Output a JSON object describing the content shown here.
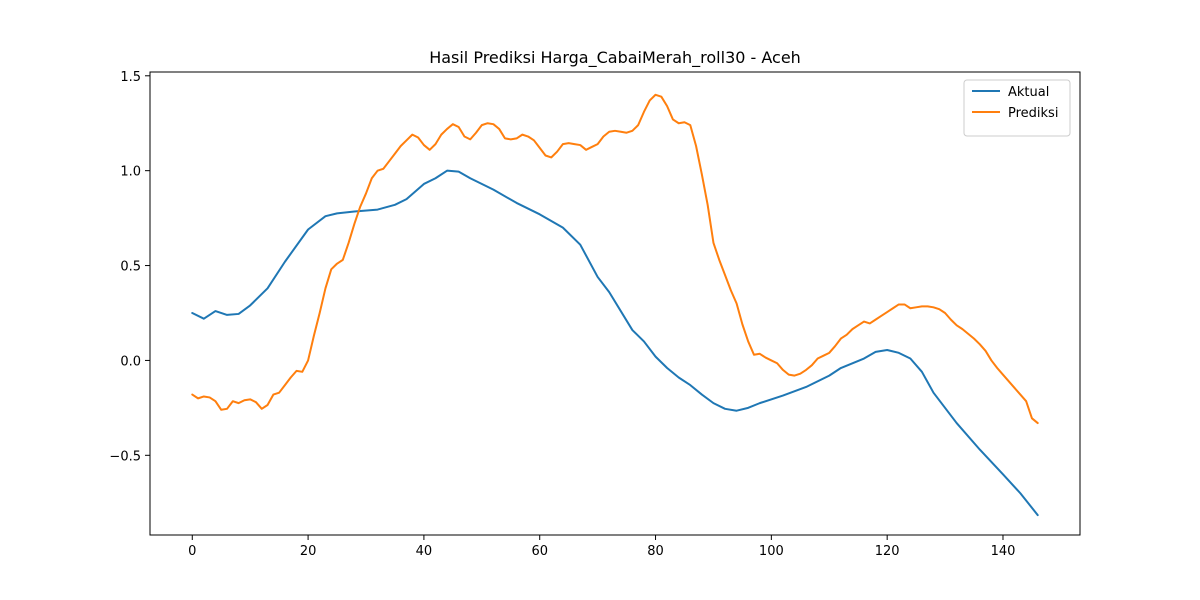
{
  "chart_data": {
    "type": "line",
    "title": "Hasil Prediksi Harga_CabaiMerah_roll30 - Aceh",
    "xlabel": "",
    "ylabel": "",
    "xlim": [
      -7.3,
      153.3
    ],
    "ylim": [
      -0.92,
      1.52
    ],
    "xticks": [
      0,
      20,
      40,
      60,
      80,
      100,
      120,
      140
    ],
    "xtick_labels": [
      "0",
      "20",
      "40",
      "60",
      "80",
      "100",
      "120",
      "140"
    ],
    "yticks": [
      -0.5,
      0.0,
      0.5,
      1.0,
      1.5
    ],
    "ytick_labels": [
      "−0.5",
      "0.0",
      "0.5",
      "1.0",
      "1.5"
    ],
    "grid": false,
    "legend_position": "top-right",
    "series": [
      {
        "name": "Aktual",
        "color": "#1f77b4",
        "points": [
          [
            0,
            0.25
          ],
          [
            2,
            0.22
          ],
          [
            4,
            0.26
          ],
          [
            6,
            0.24
          ],
          [
            8,
            0.245
          ],
          [
            10,
            0.29
          ],
          [
            13,
            0.38
          ],
          [
            16,
            0.52
          ],
          [
            20,
            0.69
          ],
          [
            23,
            0.76
          ],
          [
            25,
            0.775
          ],
          [
            28,
            0.785
          ],
          [
            32,
            0.795
          ],
          [
            35,
            0.82
          ],
          [
            37,
            0.85
          ],
          [
            40,
            0.93
          ],
          [
            42,
            0.96
          ],
          [
            44,
            1.0
          ],
          [
            46,
            0.995
          ],
          [
            48,
            0.96
          ],
          [
            52,
            0.9
          ],
          [
            56,
            0.83
          ],
          [
            60,
            0.77
          ],
          [
            64,
            0.7
          ],
          [
            67,
            0.61
          ],
          [
            70,
            0.44
          ],
          [
            72,
            0.36
          ],
          [
            76,
            0.16
          ],
          [
            78,
            0.1
          ],
          [
            80,
            0.02
          ],
          [
            82,
            -0.04
          ],
          [
            84,
            -0.09
          ],
          [
            86,
            -0.13
          ],
          [
            88,
            -0.18
          ],
          [
            90,
            -0.225
          ],
          [
            92,
            -0.255
          ],
          [
            94,
            -0.265
          ],
          [
            96,
            -0.25
          ],
          [
            98,
            -0.225
          ],
          [
            102,
            -0.185
          ],
          [
            106,
            -0.14
          ],
          [
            110,
            -0.08
          ],
          [
            112,
            -0.04
          ],
          [
            116,
            0.01
          ],
          [
            118,
            0.045
          ],
          [
            120,
            0.055
          ],
          [
            122,
            0.04
          ],
          [
            124,
            0.01
          ],
          [
            126,
            -0.06
          ],
          [
            128,
            -0.17
          ],
          [
            132,
            -0.33
          ],
          [
            136,
            -0.47
          ],
          [
            140,
            -0.6
          ],
          [
            143,
            -0.7
          ],
          [
            146,
            -0.815
          ]
        ]
      },
      {
        "name": "Prediksi",
        "color": "#ff7f0e",
        "points": [
          [
            0,
            -0.18
          ],
          [
            1,
            -0.2
          ],
          [
            2,
            -0.19
          ],
          [
            3,
            -0.195
          ],
          [
            4,
            -0.215
          ],
          [
            5,
            -0.26
          ],
          [
            6,
            -0.255
          ],
          [
            7,
            -0.215
          ],
          [
            8,
            -0.225
          ],
          [
            9,
            -0.21
          ],
          [
            10,
            -0.205
          ],
          [
            11,
            -0.22
          ],
          [
            12,
            -0.255
          ],
          [
            13,
            -0.235
          ],
          [
            14,
            -0.18
          ],
          [
            15,
            -0.17
          ],
          [
            16,
            -0.13
          ],
          [
            17,
            -0.09
          ],
          [
            18,
            -0.055
          ],
          [
            19,
            -0.06
          ],
          [
            20,
            0.0
          ],
          [
            21,
            0.13
          ],
          [
            22,
            0.25
          ],
          [
            23,
            0.38
          ],
          [
            24,
            0.48
          ],
          [
            25,
            0.51
          ],
          [
            26,
            0.53
          ],
          [
            27,
            0.62
          ],
          [
            28,
            0.72
          ],
          [
            29,
            0.81
          ],
          [
            30,
            0.88
          ],
          [
            31,
            0.96
          ],
          [
            32,
            1.0
          ],
          [
            33,
            1.01
          ],
          [
            34,
            1.05
          ],
          [
            35,
            1.09
          ],
          [
            36,
            1.13
          ],
          [
            37,
            1.16
          ],
          [
            38,
            1.19
          ],
          [
            39,
            1.175
          ],
          [
            40,
            1.135
          ],
          [
            41,
            1.11
          ],
          [
            42,
            1.14
          ],
          [
            43,
            1.19
          ],
          [
            44,
            1.22
          ],
          [
            45,
            1.245
          ],
          [
            46,
            1.23
          ],
          [
            47,
            1.18
          ],
          [
            48,
            1.165
          ],
          [
            49,
            1.2
          ],
          [
            50,
            1.24
          ],
          [
            51,
            1.25
          ],
          [
            52,
            1.245
          ],
          [
            53,
            1.22
          ],
          [
            54,
            1.17
          ],
          [
            55,
            1.165
          ],
          [
            56,
            1.17
          ],
          [
            57,
            1.19
          ],
          [
            58,
            1.18
          ],
          [
            59,
            1.16
          ],
          [
            60,
            1.12
          ],
          [
            61,
            1.08
          ],
          [
            62,
            1.07
          ],
          [
            63,
            1.1
          ],
          [
            64,
            1.14
          ],
          [
            65,
            1.145
          ],
          [
            66,
            1.14
          ],
          [
            67,
            1.135
          ],
          [
            68,
            1.11
          ],
          [
            69,
            1.125
          ],
          [
            70,
            1.14
          ],
          [
            71,
            1.18
          ],
          [
            72,
            1.205
          ],
          [
            73,
            1.21
          ],
          [
            74,
            1.205
          ],
          [
            75,
            1.2
          ],
          [
            76,
            1.21
          ],
          [
            77,
            1.24
          ],
          [
            78,
            1.31
          ],
          [
            79,
            1.37
          ],
          [
            80,
            1.4
          ],
          [
            81,
            1.39
          ],
          [
            82,
            1.34
          ],
          [
            83,
            1.27
          ],
          [
            84,
            1.25
          ],
          [
            85,
            1.255
          ],
          [
            86,
            1.24
          ],
          [
            87,
            1.13
          ],
          [
            88,
            0.98
          ],
          [
            89,
            0.82
          ],
          [
            90,
            0.62
          ],
          [
            91,
            0.53
          ],
          [
            92,
            0.45
          ],
          [
            93,
            0.37
          ],
          [
            94,
            0.3
          ],
          [
            95,
            0.19
          ],
          [
            96,
            0.1
          ],
          [
            97,
            0.03
          ],
          [
            98,
            0.035
          ],
          [
            99,
            0.015
          ],
          [
            100,
            0.0
          ],
          [
            101,
            -0.015
          ],
          [
            102,
            -0.05
          ],
          [
            103,
            -0.075
          ],
          [
            104,
            -0.08
          ],
          [
            105,
            -0.07
          ],
          [
            106,
            -0.05
          ],
          [
            107,
            -0.025
          ],
          [
            108,
            0.01
          ],
          [
            109,
            0.025
          ],
          [
            110,
            0.04
          ],
          [
            111,
            0.075
          ],
          [
            112,
            0.115
          ],
          [
            113,
            0.135
          ],
          [
            114,
            0.165
          ],
          [
            115,
            0.185
          ],
          [
            116,
            0.205
          ],
          [
            117,
            0.195
          ],
          [
            118,
            0.215
          ],
          [
            119,
            0.235
          ],
          [
            120,
            0.255
          ],
          [
            121,
            0.275
          ],
          [
            122,
            0.295
          ],
          [
            123,
            0.295
          ],
          [
            124,
            0.275
          ],
          [
            125,
            0.28
          ],
          [
            126,
            0.285
          ],
          [
            127,
            0.285
          ],
          [
            128,
            0.28
          ],
          [
            129,
            0.27
          ],
          [
            130,
            0.25
          ],
          [
            131,
            0.215
          ],
          [
            132,
            0.185
          ],
          [
            133,
            0.165
          ],
          [
            134,
            0.14
          ],
          [
            135,
            0.115
          ],
          [
            136,
            0.085
          ],
          [
            137,
            0.05
          ],
          [
            138,
            0.0
          ],
          [
            139,
            -0.04
          ],
          [
            140,
            -0.075
          ],
          [
            141,
            -0.11
          ],
          [
            142,
            -0.145
          ],
          [
            143,
            -0.18
          ],
          [
            144,
            -0.215
          ],
          [
            145,
            -0.305
          ],
          [
            146,
            -0.33
          ]
        ]
      }
    ]
  }
}
